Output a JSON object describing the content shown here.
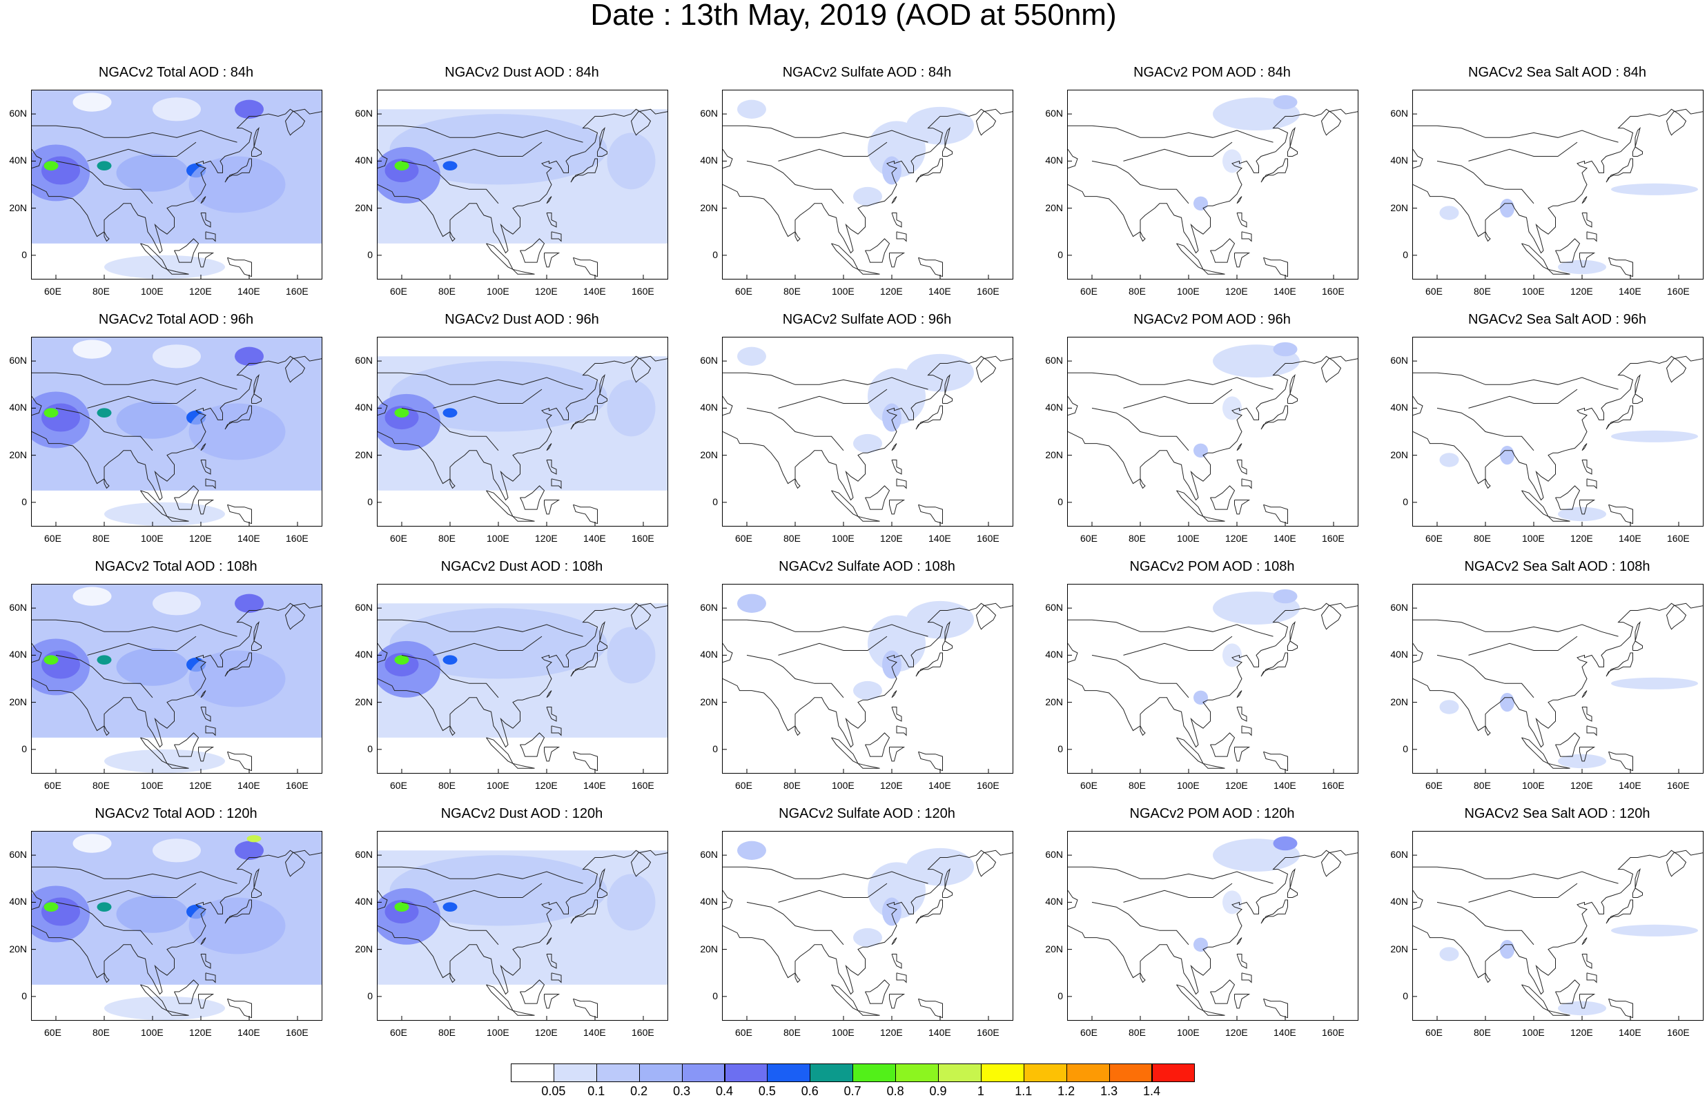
{
  "title": "Date : 13th May, 2019 (AOD at 550nm)",
  "rows": [
    {
      "lead": "84h",
      "titles": [
        "NGACv2 Total AOD : 84h",
        "NGACv2 Dust AOD : 84h",
        "NGACv2 Sulfate AOD : 84h",
        "NGACv2 POM AOD : 84h",
        "NGACv2 Sea Salt AOD : 84h"
      ]
    },
    {
      "lead": "96h",
      "titles": [
        "NGACv2 Total AOD : 96h",
        "NGACv2 Dust AOD : 96h",
        "NGACv2 Sulfate AOD : 96h",
        "NGACv2 POM AOD : 96h",
        "NGACv2 Sea Salt AOD : 96h"
      ]
    },
    {
      "lead": "108h",
      "titles": [
        "NGACv2 Total AOD : 108h",
        "NGACv2 Dust AOD : 108h",
        "NGACv2 Sulfate AOD : 108h",
        "NGACv2 POM AOD : 108h",
        "NGACv2 Sea Salt AOD : 108h"
      ]
    },
    {
      "lead": "120h",
      "titles": [
        "NGACv2 Total AOD : 120h",
        "NGACv2 Dust AOD : 120h",
        "NGACv2 Sulfate AOD : 120h",
        "NGACv2 POM AOD : 120h",
        "NGACv2 Sea Salt  AOD : 120h"
      ]
    }
  ],
  "axes": {
    "lon_labels": [
      "60E",
      "80E",
      "100E",
      "120E",
      "140E",
      "160E"
    ],
    "lat_labels": [
      "60N",
      "40N",
      "20N",
      "0"
    ],
    "lon_range": [
      50,
      170
    ],
    "lat_range": [
      -10,
      70
    ]
  },
  "colorbar": {
    "colors": [
      "#ffffff",
      "#d6e0fb",
      "#bccafa",
      "#a2b4f9",
      "#8896f7",
      "#6c6ff1",
      "#1a5ff5",
      "#0c9a8c",
      "#52f019",
      "#8cf51f",
      "#c8f54d",
      "#fcfc03",
      "#fdc104",
      "#fd9a04",
      "#fc6f07",
      "#fc1a0c"
    ],
    "labels": [
      "0.05",
      "0.1",
      "0.2",
      "0.3",
      "0.4",
      "0.5",
      "0.6",
      "0.7",
      "0.8",
      "0.9",
      "1",
      "1.1",
      "1.2",
      "1.3",
      "1.4"
    ]
  }
}
